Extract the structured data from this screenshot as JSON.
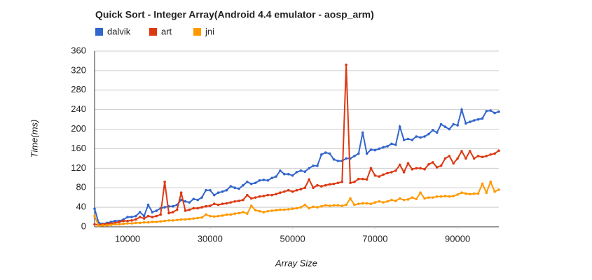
{
  "chart_data": {
    "type": "line",
    "title": "Quick Sort - Integer Array(Android 4.4 emulator - aosp_arm)",
    "xlabel": "Array Size",
    "ylabel": "Time(ms)",
    "x": [
      2000,
      3000,
      4000,
      5000,
      6000,
      7000,
      8000,
      9000,
      10000,
      11000,
      12000,
      13000,
      14000,
      15000,
      16000,
      17000,
      18000,
      19000,
      20000,
      21000,
      22000,
      23000,
      24000,
      25000,
      26000,
      27000,
      28000,
      29000,
      30000,
      31000,
      32000,
      33000,
      34000,
      35000,
      36000,
      37000,
      38000,
      39000,
      40000,
      41000,
      42000,
      43000,
      44000,
      45000,
      46000,
      47000,
      48000,
      49000,
      50000,
      51000,
      52000,
      53000,
      54000,
      55000,
      56000,
      57000,
      58000,
      59000,
      60000,
      61000,
      62000,
      63000,
      64000,
      65000,
      66000,
      67000,
      68000,
      69000,
      70000,
      71000,
      72000,
      73000,
      74000,
      75000,
      76000,
      77000,
      78000,
      79000,
      80000,
      81000,
      82000,
      83000,
      84000,
      85000,
      86000,
      87000,
      88000,
      89000,
      90000,
      91000,
      92000,
      93000,
      94000,
      95000,
      96000,
      97000,
      98000,
      99000,
      100000
    ],
    "series": [
      {
        "name": "dalvik",
        "color": "#3366cc",
        "values": [
          37,
          8,
          6,
          8,
          10,
          12,
          12,
          15,
          20,
          20,
          22,
          30,
          22,
          45,
          30,
          33,
          38,
          40,
          42,
          42,
          45,
          55,
          52,
          50,
          57,
          55,
          60,
          75,
          75,
          65,
          70,
          72,
          75,
          83,
          80,
          78,
          85,
          92,
          88,
          90,
          95,
          96,
          95,
          100,
          103,
          115,
          108,
          108,
          105,
          112,
          115,
          113,
          120,
          125,
          125,
          148,
          152,
          150,
          138,
          135,
          135,
          140,
          140,
          145,
          150,
          193,
          150,
          158,
          157,
          160,
          163,
          165,
          170,
          168,
          205,
          178,
          180,
          178,
          185,
          183,
          185,
          190,
          198,
          193,
          210,
          205,
          200,
          210,
          208,
          240,
          212,
          215,
          218,
          220,
          222,
          237,
          238,
          233,
          236
        ]
      },
      {
        "name": "art",
        "color": "#dc3912",
        "values": [
          5,
          4,
          5,
          6,
          7,
          8,
          10,
          12,
          12,
          13,
          15,
          20,
          17,
          22,
          20,
          22,
          25,
          92,
          28,
          30,
          35,
          70,
          33,
          35,
          38,
          38,
          40,
          42,
          43,
          47,
          45,
          47,
          48,
          50,
          52,
          53,
          55,
          65,
          58,
          60,
          62,
          63,
          65,
          65,
          67,
          70,
          72,
          75,
          72,
          75,
          77,
          80,
          97,
          80,
          85,
          83,
          85,
          87,
          88,
          90,
          92,
          332,
          90,
          92,
          98,
          98,
          97,
          120,
          105,
          103,
          107,
          110,
          112,
          115,
          127,
          112,
          130,
          118,
          120,
          120,
          118,
          128,
          132,
          122,
          125,
          140,
          145,
          130,
          140,
          155,
          140,
          155,
          140,
          145,
          143,
          145,
          148,
          150,
          156
        ]
      },
      {
        "name": "jni",
        "color": "#ff9900",
        "values": [
          22,
          2,
          3,
          3,
          4,
          5,
          5,
          6,
          7,
          7,
          8,
          8,
          9,
          9,
          10,
          10,
          11,
          12,
          13,
          13,
          14,
          15,
          15,
          16,
          17,
          18,
          19,
          25,
          22,
          21,
          22,
          23,
          25,
          25,
          27,
          28,
          30,
          27,
          43,
          34,
          32,
          30,
          32,
          33,
          34,
          35,
          35,
          36,
          37,
          38,
          40,
          45,
          38,
          41,
          40,
          42,
          44,
          43,
          44,
          44,
          43,
          45,
          58,
          45,
          47,
          48,
          48,
          47,
          50,
          52,
          50,
          52,
          55,
          53,
          58,
          55,
          56,
          60,
          57,
          70,
          58,
          60,
          60,
          62,
          62,
          63,
          62,
          63,
          66,
          70,
          68,
          67,
          68,
          68,
          88,
          70,
          92,
          72,
          76
        ]
      }
    ],
    "xlim": [
      2000,
      100000
    ],
    "xticks": [
      10000,
      30000,
      50000,
      70000,
      90000
    ],
    "ylim": [
      0,
      360
    ],
    "yticks": [
      0,
      40,
      80,
      120,
      160,
      200,
      240,
      280,
      320,
      360
    ],
    "grid": true,
    "legend": "top"
  }
}
